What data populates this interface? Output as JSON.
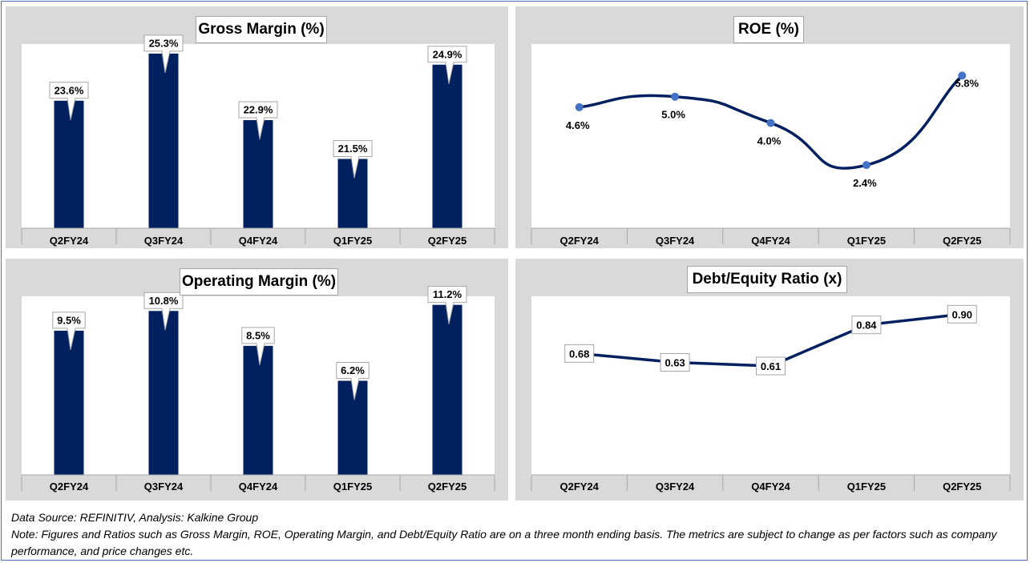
{
  "chart_data": [
    {
      "id": "gross",
      "type": "bar",
      "title": "Gross Margin (%)",
      "categories": [
        "Q2FY24",
        "Q3FY24",
        "Q4FY24",
        "Q1FY25",
        "Q2FY25"
      ],
      "values": [
        23.6,
        25.3,
        22.9,
        21.5,
        24.9
      ],
      "labels": [
        "23.6%",
        "25.3%",
        "22.9%",
        "21.5%",
        "24.9%"
      ],
      "ylim": [
        19,
        25.5
      ],
      "color": "#002060"
    },
    {
      "id": "roe",
      "type": "line",
      "title": "ROE (%)",
      "categories": [
        "Q2FY24",
        "Q3FY24",
        "Q4FY24",
        "Q1FY25",
        "Q2FY25"
      ],
      "values": [
        4.6,
        5.0,
        4.0,
        2.4,
        5.8
      ],
      "labels": [
        "4.6%",
        "5.0%",
        "4.0%",
        "2.4%",
        "5.8%"
      ],
      "ylim": [
        0,
        7
      ],
      "smooth": true,
      "color": "#002060",
      "marker_color": "#4472c4"
    },
    {
      "id": "opm",
      "type": "bar",
      "title": "Operating Margin (%)",
      "categories": [
        "Q2FY24",
        "Q3FY24",
        "Q4FY24",
        "Q1FY25",
        "Q2FY25"
      ],
      "values": [
        9.5,
        10.8,
        8.5,
        6.2,
        11.2
      ],
      "labels": [
        "9.5%",
        "10.8%",
        "8.5%",
        "6.2%",
        "11.2%"
      ],
      "ylim": [
        0,
        11.5
      ],
      "color": "#002060"
    },
    {
      "id": "de",
      "type": "line",
      "title": "Debt/Equity Ratio (x)",
      "categories": [
        "Q2FY24",
        "Q3FY24",
        "Q4FY24",
        "Q1FY25",
        "Q2FY25"
      ],
      "values": [
        0.68,
        0.63,
        0.61,
        0.84,
        0.9
      ],
      "labels": [
        "0.68",
        "0.63",
        "0.61",
        "0.84",
        "0.90"
      ],
      "ylim": [
        0,
        1.0
      ],
      "smooth": false,
      "color": "#002060"
    }
  ],
  "notes": {
    "source": "Data Source: REFINITIV, Analysis: Kalkine Group",
    "note": "Note: Figures and Ratios such as Gross Margin, ROE, Operating Margin, and Debt/Equity Ratio are on a three month ending basis. The metrics are subject to change as per factors such as company performance, and price changes etc."
  }
}
